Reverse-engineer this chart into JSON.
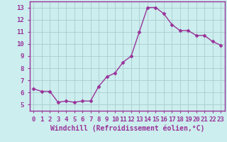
{
  "x": [
    0,
    1,
    2,
    3,
    4,
    5,
    6,
    7,
    8,
    9,
    10,
    11,
    12,
    13,
    14,
    15,
    16,
    17,
    18,
    19,
    20,
    21,
    22,
    23
  ],
  "y": [
    6.3,
    6.1,
    6.1,
    5.2,
    5.3,
    5.2,
    5.3,
    5.3,
    6.5,
    7.3,
    7.6,
    8.5,
    9.0,
    11.0,
    13.0,
    13.0,
    12.5,
    11.6,
    11.1,
    11.1,
    10.7,
    10.7,
    10.2,
    9.9
  ],
  "line_color": "#993399",
  "marker": "D",
  "marker_size": 2.5,
  "line_width": 1.0,
  "bg_color": "#cceeee",
  "grid_color": "#aacccc",
  "xlabel": "Windchill (Refroidissement éolien,°C)",
  "xlabel_fontsize": 7,
  "ylim": [
    4.5,
    13.5
  ],
  "yticks": [
    5,
    6,
    7,
    8,
    9,
    10,
    11,
    12,
    13
  ],
  "tick_fontsize": 6.5,
  "tick_color": "#993399",
  "spine_color": "#993399"
}
